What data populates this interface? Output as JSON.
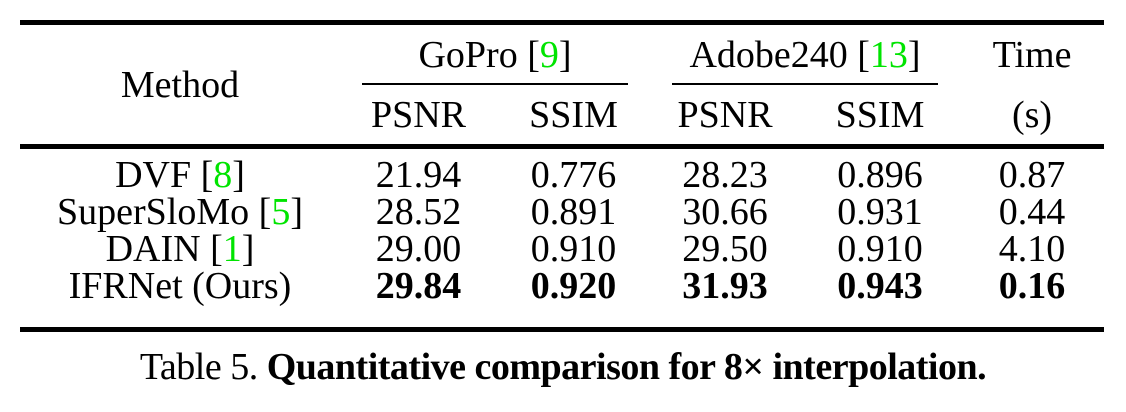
{
  "colors": {
    "text": "#000000",
    "citation": "#00e400",
    "background": "#ffffff",
    "rule": "#000000"
  },
  "table": {
    "header": {
      "method_label": "Method",
      "groups": [
        {
          "segments": [
            {
              "t": "GoPro ["
            },
            {
              "t": "9",
              "color": "#00e400",
              "name": "citation-link",
              "interactable": true
            },
            {
              "t": "]"
            }
          ]
        },
        {
          "segments": [
            {
              "t": "Adobe240 ["
            },
            {
              "t": "13",
              "color": "#00e400",
              "name": "citation-link",
              "interactable": true
            },
            {
              "t": "]"
            }
          ]
        }
      ],
      "time_label": "Time",
      "sub_labels": [
        "PSNR",
        "SSIM",
        "PSNR",
        "SSIM",
        "(s)"
      ]
    },
    "rows": [
      {
        "method_segments": [
          {
            "t": "DVF ["
          },
          {
            "t": "8",
            "color": "#00e400",
            "name": "citation-link",
            "interactable": true
          },
          {
            "t": "]"
          }
        ],
        "values": [
          "21.94",
          "0.776",
          "28.23",
          "0.896",
          "0.87"
        ],
        "bold": false
      },
      {
        "method_segments": [
          {
            "t": "SuperSloMo ["
          },
          {
            "t": "5",
            "color": "#00e400",
            "name": "citation-link",
            "interactable": true
          },
          {
            "t": "]"
          }
        ],
        "values": [
          "28.52",
          "0.891",
          "30.66",
          "0.931",
          "0.44"
        ],
        "bold": false
      },
      {
        "method_segments": [
          {
            "t": "DAIN ["
          },
          {
            "t": "1",
            "color": "#00e400",
            "name": "citation-link",
            "interactable": true
          },
          {
            "t": "]"
          }
        ],
        "values": [
          "29.00",
          "0.910",
          "29.50",
          "0.910",
          "4.10"
        ],
        "bold": false
      },
      {
        "method_segments": [
          {
            "t": "IFRNet (Ours)"
          }
        ],
        "values": [
          "29.84",
          "0.920",
          "31.93",
          "0.943",
          "0.16"
        ],
        "bold": true
      }
    ]
  },
  "caption": {
    "segments": [
      {
        "t": "Table 5. "
      },
      {
        "t": "Quantitative comparison for 8× interpolation.",
        "b": true
      }
    ]
  },
  "chart_data": {
    "type": "table",
    "title": "Table 5. Quantitative comparison for 8× interpolation.",
    "columns": [
      "Method",
      "GoPro PSNR",
      "GoPro SSIM",
      "Adobe240 PSNR",
      "Adobe240 SSIM",
      "Time (s)"
    ],
    "rows": [
      [
        "DVF [8]",
        21.94,
        0.776,
        28.23,
        0.896,
        0.87
      ],
      [
        "SuperSloMo [5]",
        28.52,
        0.891,
        30.66,
        0.931,
        0.44
      ],
      [
        "DAIN [1]",
        29.0,
        0.91,
        29.5,
        0.91,
        4.1
      ],
      [
        "IFRNet (Ours)",
        29.84,
        0.92,
        31.93,
        0.943,
        0.16
      ]
    ]
  }
}
